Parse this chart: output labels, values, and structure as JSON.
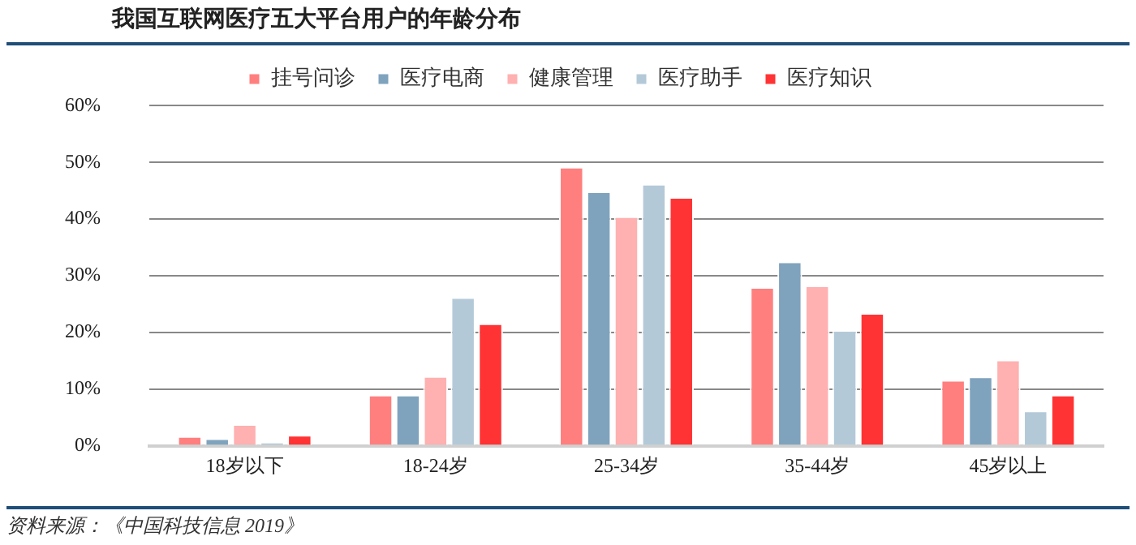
{
  "chart_data": {
    "type": "bar",
    "title": "我国互联网医疗五大平台用户的年龄分布",
    "categories": [
      "18岁以下",
      "18-24岁",
      "25-34岁",
      "35-44岁",
      "45岁以上"
    ],
    "series": [
      {
        "name": "挂号问诊",
        "color": "#ff7f7f",
        "values": [
          1.7,
          9.0,
          49.2,
          28.0,
          11.6
        ]
      },
      {
        "name": "医疗电商",
        "color": "#7fa3bd",
        "values": [
          1.3,
          9.0,
          44.9,
          32.5,
          12.2
        ]
      },
      {
        "name": "健康管理",
        "color": "#ffb0b0",
        "values": [
          3.8,
          12.3,
          40.5,
          28.3,
          15.2
        ]
      },
      {
        "name": "医疗助手",
        "color": "#b4c9d8",
        "values": [
          0.7,
          26.2,
          46.2,
          20.4,
          6.2
        ]
      },
      {
        "name": "医疗知识",
        "color": "#ff3333",
        "values": [
          1.9,
          21.6,
          43.9,
          23.4,
          9.0
        ]
      }
    ],
    "ylim": [
      0,
      60
    ],
    "yticks": [
      {
        "value": 0,
        "label": "0%"
      },
      {
        "value": 10,
        "label": "10%"
      },
      {
        "value": 20,
        "label": "20%"
      },
      {
        "value": 30,
        "label": "30%"
      },
      {
        "value": 40,
        "label": "40%"
      },
      {
        "value": 50,
        "label": "50%"
      },
      {
        "value": 60,
        "label": "60%"
      }
    ],
    "grid": "y",
    "legend": "top",
    "annotations": [
      "资料来源：《中国科技信息 2019》"
    ]
  }
}
